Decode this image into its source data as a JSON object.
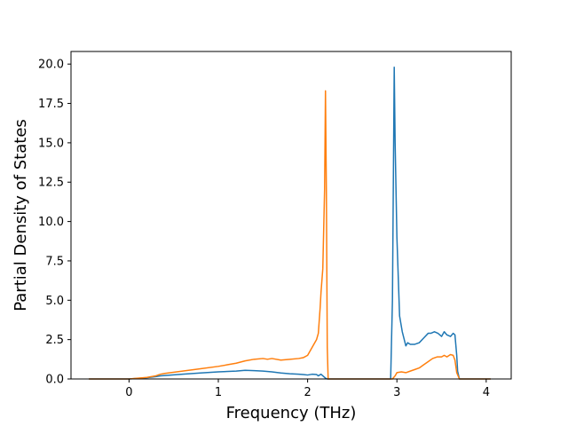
{
  "chart_data": {
    "type": "line",
    "title": "",
    "xlabel": "Frequency (THz)",
    "ylabel": "Partial Density of States",
    "xlim": [
      -0.65,
      4.28
    ],
    "ylim": [
      0,
      20.8
    ],
    "xticks": [
      0,
      1,
      2,
      3,
      4
    ],
    "xtick_labels": [
      "0",
      "1",
      "2",
      "3",
      "4"
    ],
    "yticks": [
      0.0,
      2.5,
      5.0,
      7.5,
      10.0,
      12.5,
      15.0,
      17.5,
      20.0
    ],
    "ytick_labels": [
      "0.0",
      "2.5",
      "5.0",
      "7.5",
      "10.0",
      "12.5",
      "15.0",
      "17.5",
      "20.0"
    ],
    "grid": false,
    "legend": "none",
    "series": [
      {
        "color": "#1f77b4",
        "x": [
          -0.45,
          0.0,
          0.2,
          0.3,
          0.35,
          0.4,
          0.6,
          0.8,
          1.0,
          1.2,
          1.3,
          1.4,
          1.5,
          1.6,
          1.7,
          1.8,
          1.9,
          1.95,
          2.0,
          2.05,
          2.1,
          2.12,
          2.15,
          2.18,
          2.2,
          2.22,
          2.5,
          2.93,
          2.95,
          2.97,
          2.98,
          3.0,
          3.03,
          3.06,
          3.1,
          3.12,
          3.15,
          3.2,
          3.25,
          3.3,
          3.35,
          3.38,
          3.42,
          3.46,
          3.5,
          3.53,
          3.56,
          3.6,
          3.63,
          3.65,
          3.67,
          3.68,
          3.7,
          3.73,
          4.05
        ],
        "y": [
          0,
          0,
          0.08,
          0.15,
          0.2,
          0.22,
          0.3,
          0.38,
          0.45,
          0.5,
          0.55,
          0.53,
          0.5,
          0.45,
          0.38,
          0.33,
          0.3,
          0.28,
          0.25,
          0.3,
          0.28,
          0.2,
          0.3,
          0.15,
          0.05,
          0,
          0,
          0,
          5.0,
          19.8,
          15.0,
          9.0,
          4.0,
          3.0,
          2.1,
          2.3,
          2.2,
          2.2,
          2.3,
          2.6,
          2.9,
          2.9,
          3.0,
          2.9,
          2.7,
          3.0,
          2.8,
          2.7,
          2.9,
          2.8,
          1.5,
          0.5,
          0,
          0,
          0
        ]
      },
      {
        "color": "#ff7f0e",
        "x": [
          -0.45,
          0.0,
          0.2,
          0.3,
          0.35,
          0.4,
          0.6,
          0.8,
          1.0,
          1.1,
          1.2,
          1.3,
          1.4,
          1.5,
          1.55,
          1.6,
          1.7,
          1.8,
          1.9,
          1.95,
          2.0,
          2.05,
          2.1,
          2.12,
          2.14,
          2.15,
          2.17,
          2.19,
          2.2,
          2.21,
          2.22,
          2.23,
          2.5,
          2.95,
          2.98,
          3.0,
          3.05,
          3.1,
          3.15,
          3.2,
          3.25,
          3.3,
          3.35,
          3.4,
          3.45,
          3.5,
          3.53,
          3.56,
          3.6,
          3.63,
          3.65,
          3.67,
          3.7,
          3.73,
          4.05
        ],
        "y": [
          0,
          0,
          0.1,
          0.2,
          0.3,
          0.35,
          0.5,
          0.65,
          0.8,
          0.9,
          1.0,
          1.15,
          1.25,
          1.3,
          1.25,
          1.3,
          1.2,
          1.25,
          1.3,
          1.35,
          1.5,
          2.0,
          2.5,
          2.9,
          4.5,
          5.5,
          7.0,
          12.0,
          18.3,
          12.0,
          2.0,
          0,
          0,
          0,
          0.2,
          0.4,
          0.45,
          0.4,
          0.5,
          0.6,
          0.7,
          0.9,
          1.1,
          1.3,
          1.4,
          1.4,
          1.5,
          1.4,
          1.55,
          1.5,
          1.2,
          0.4,
          0,
          0,
          0
        ]
      }
    ]
  }
}
